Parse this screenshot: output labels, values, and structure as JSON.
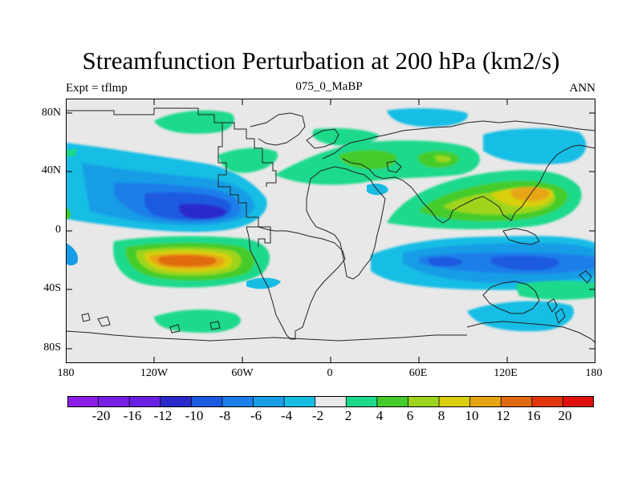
{
  "title": "Streamfunction Perturbation at 200 hPa (km2/s)",
  "left_label": "Expt = tflmp",
  "center_label": "075_0_MaBP",
  "right_label": "ANN",
  "lat_ticks": [
    "80N",
    "40N",
    "0",
    "40S",
    "80S"
  ],
  "lon_ticks": [
    "180",
    "120W",
    "60W",
    "0",
    "60E",
    "120E",
    "180"
  ],
  "colorbar": {
    "labels": [
      "-20",
      "-16",
      "-12",
      "-10",
      "-8",
      "-6",
      "-4",
      "-2",
      "2",
      "4",
      "6",
      "8",
      "10",
      "12",
      "16",
      "20"
    ],
    "colors": [
      "#8c1ee6",
      "#7a1fe6",
      "#6a20e4",
      "#2a2acc",
      "#1c5ae0",
      "#1c7ee8",
      "#199de6",
      "#18bde4",
      "#e8e8e8",
      "#1ed98c",
      "#45cc2a",
      "#9ed51e",
      "#d9cf0f",
      "#e6a614",
      "#e06a10",
      "#e0360e",
      "#e0100e"
    ]
  },
  "colors": {
    "land_bg": "#e8e8e8",
    "coast": "#222222"
  }
}
